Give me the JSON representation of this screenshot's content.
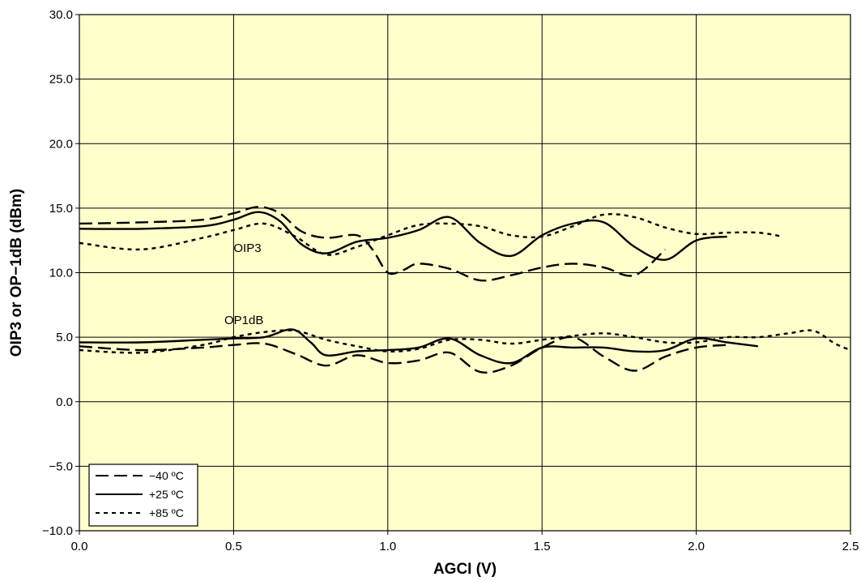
{
  "chart_data": {
    "type": "line",
    "title": "",
    "xlabel": "AGCI (V)",
    "ylabel": "OIP3 or OP−1dB (dBm)",
    "xlim": [
      0,
      2.5
    ],
    "ylim": [
      -10,
      30
    ],
    "x_ticks": [
      0,
      0.5,
      1.0,
      1.5,
      2.0,
      2.5
    ],
    "x_tick_labels": [
      "0.0",
      "0.5",
      "1.0",
      "1.5",
      "2.0",
      "2.5"
    ],
    "y_ticks": [
      -10,
      -5,
      0,
      5,
      10,
      15,
      20,
      25,
      30
    ],
    "y_tick_labels": [
      "−10.0",
      "−5.0",
      "0.0",
      "5.0",
      "10.0",
      "15.0",
      "20.0",
      "25.0",
      "30.0"
    ],
    "grid": true,
    "plot_background": "#ffffcc",
    "line_color": "#000000",
    "legend": {
      "position": "bottom-left",
      "entries": [
        {
          "label": "−40 ºC",
          "style": "dash"
        },
        {
          "label": "+25 ºC",
          "style": "solid"
        },
        {
          "label": "+85 ºC",
          "style": "short-dash"
        }
      ]
    },
    "annotations": [
      {
        "text": "OIP3",
        "x": 0.5,
        "y": 11.6
      },
      {
        "text": "OP1dB",
        "x": 0.47,
        "y": 6.0
      }
    ],
    "series": [
      {
        "metric": "OIP3",
        "temp": "−40 ºC",
        "style": "dash",
        "x": [
          0,
          0.2,
          0.4,
          0.5,
          0.58,
          0.65,
          0.72,
          0.8,
          0.9,
          0.95,
          1.0,
          1.05,
          1.1,
          1.2,
          1.3,
          1.4,
          1.5,
          1.6,
          1.7,
          1.8,
          1.9
        ],
        "y": [
          13.8,
          13.9,
          14.1,
          14.6,
          15.1,
          14.6,
          13.2,
          12.7,
          12.9,
          11.8,
          10.0,
          10.2,
          10.7,
          10.3,
          9.4,
          9.8,
          10.4,
          10.7,
          10.4,
          9.8,
          11.8
        ]
      },
      {
        "metric": "OIP3",
        "temp": "+25 ºC",
        "style": "solid",
        "x": [
          0,
          0.2,
          0.4,
          0.5,
          0.58,
          0.65,
          0.72,
          0.8,
          0.9,
          1.0,
          1.1,
          1.2,
          1.3,
          1.4,
          1.5,
          1.6,
          1.7,
          1.8,
          1.9,
          2.0,
          2.1
        ],
        "y": [
          13.4,
          13.4,
          13.6,
          14.1,
          14.7,
          14.0,
          12.2,
          11.5,
          12.4,
          12.7,
          13.3,
          14.3,
          12.3,
          11.3,
          12.9,
          13.8,
          13.9,
          12.0,
          11.0,
          12.5,
          12.8
        ]
      },
      {
        "metric": "OIP3",
        "temp": "+85 ºC",
        "style": "short-dash",
        "x": [
          0,
          0.2,
          0.4,
          0.5,
          0.6,
          0.7,
          0.8,
          0.9,
          1.0,
          1.1,
          1.2,
          1.3,
          1.4,
          1.5,
          1.6,
          1.7,
          1.8,
          1.9,
          2.0,
          2.1,
          2.2,
          2.28
        ],
        "y": [
          12.3,
          11.8,
          12.7,
          13.3,
          13.8,
          12.8,
          11.4,
          12.0,
          12.9,
          13.7,
          13.8,
          13.6,
          12.9,
          12.8,
          13.6,
          14.5,
          14.3,
          13.5,
          13.0,
          13.1,
          13.1,
          12.8
        ]
      },
      {
        "metric": "OP1dB",
        "temp": "−40 ºC",
        "style": "dash",
        "x": [
          0,
          0.2,
          0.4,
          0.5,
          0.6,
          0.7,
          0.8,
          0.9,
          1.0,
          1.1,
          1.2,
          1.3,
          1.4,
          1.5,
          1.6,
          1.7,
          1.8,
          1.9,
          2.0,
          2.1
        ],
        "y": [
          4.3,
          4.0,
          4.2,
          4.4,
          4.5,
          3.7,
          2.8,
          3.6,
          3.0,
          3.2,
          3.8,
          2.3,
          2.8,
          4.2,
          5.0,
          3.5,
          2.4,
          3.5,
          4.2,
          4.4
        ]
      },
      {
        "metric": "OP1dB",
        "temp": "+25 ºC",
        "style": "solid",
        "x": [
          0,
          0.2,
          0.4,
          0.5,
          0.6,
          0.69,
          0.75,
          0.8,
          0.9,
          1.0,
          1.1,
          1.2,
          1.3,
          1.4,
          1.5,
          1.6,
          1.7,
          1.8,
          1.9,
          2.0,
          2.1,
          2.2
        ],
        "y": [
          4.6,
          4.6,
          4.8,
          4.9,
          5.0,
          5.6,
          4.6,
          3.6,
          3.9,
          4.0,
          4.2,
          4.9,
          3.6,
          3.0,
          4.2,
          4.2,
          4.2,
          3.9,
          4.0,
          4.9,
          4.6,
          4.3
        ]
      },
      {
        "metric": "OP1dB",
        "temp": "+85 ºC",
        "style": "short-dash",
        "x": [
          0,
          0.2,
          0.4,
          0.5,
          0.6,
          0.7,
          0.8,
          0.9,
          1.0,
          1.1,
          1.2,
          1.3,
          1.4,
          1.5,
          1.6,
          1.7,
          1.8,
          1.9,
          2.0,
          2.1,
          2.2,
          2.3,
          2.38,
          2.45,
          2.5
        ],
        "y": [
          4.0,
          3.8,
          4.4,
          5.0,
          5.4,
          5.5,
          4.8,
          4.3,
          3.9,
          4.1,
          4.8,
          4.8,
          4.5,
          4.8,
          5.1,
          5.3,
          5.0,
          4.6,
          4.6,
          5.0,
          5.0,
          5.3,
          5.5,
          4.5,
          4.0
        ]
      }
    ]
  }
}
